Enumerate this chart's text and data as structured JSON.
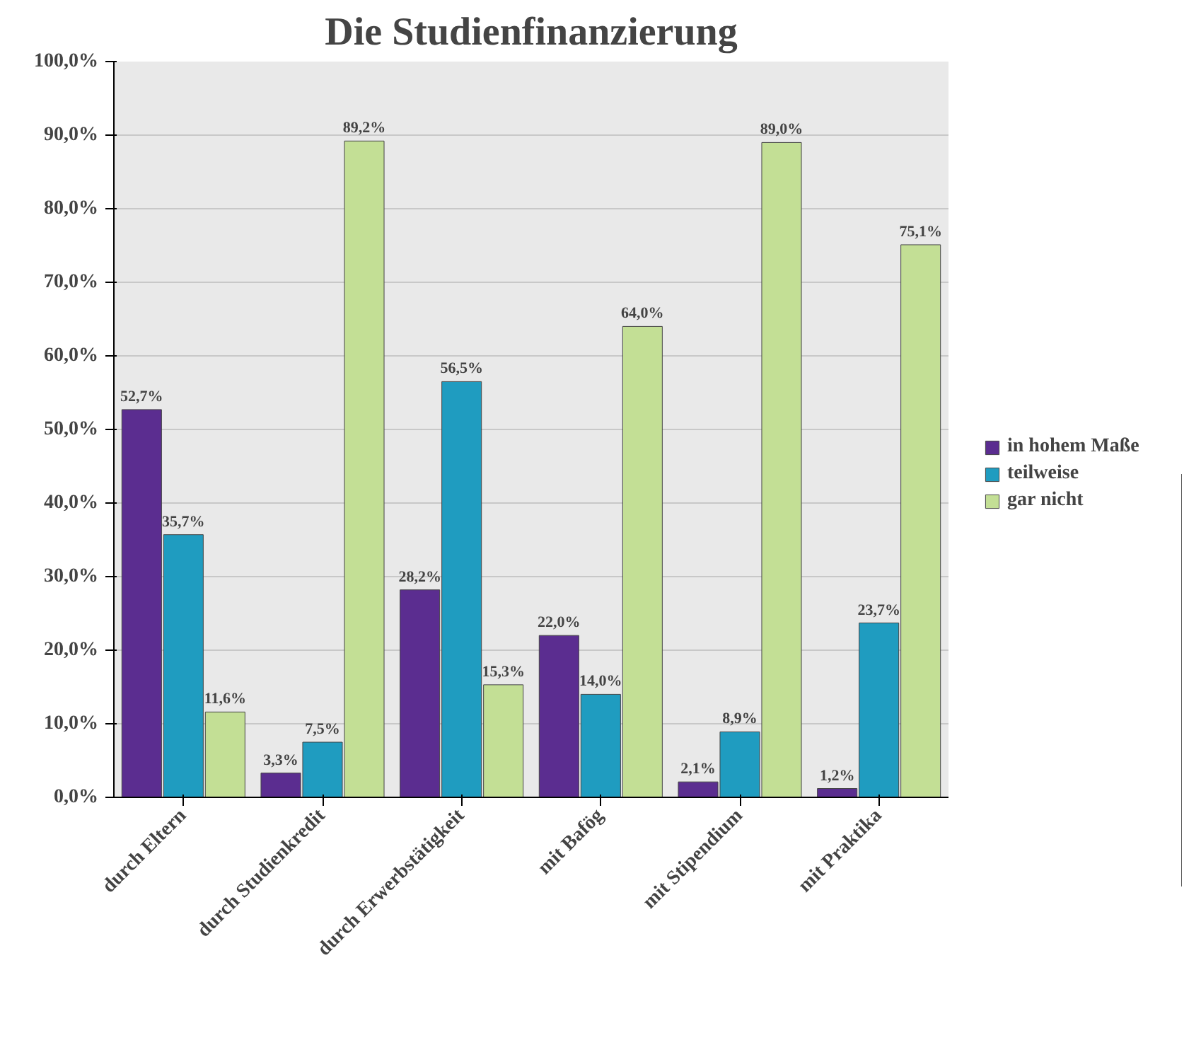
{
  "chart_data": {
    "type": "bar",
    "title": "Die Studienfinanzierung",
    "categories": [
      "durch Eltern",
      "durch Studienkredit",
      "durch Erwerbstätigkeit",
      "mit Bafög",
      "mit Stipendium",
      "mit Praktika"
    ],
    "series": [
      {
        "name": "in hohem Maße",
        "color": "#5b2d90",
        "values": [
          52.7,
          3.3,
          28.2,
          22.0,
          2.1,
          1.2
        ],
        "value_labels": [
          "52,7%",
          "3,3%",
          "28,2%",
          "22,0%",
          "2,1%",
          "1,2%"
        ]
      },
      {
        "name": "teilweise",
        "color": "#1f9cc0",
        "values": [
          35.7,
          7.5,
          56.5,
          14.0,
          8.9,
          23.7
        ],
        "value_labels": [
          "35,7%",
          "7,5%",
          "56,5%",
          "14,0%",
          "8,9%",
          "23,7%"
        ]
      },
      {
        "name": "gar nicht",
        "color": "#c3df95",
        "values": [
          11.6,
          89.2,
          15.3,
          64.0,
          89.0,
          75.1
        ],
        "value_labels": [
          "11,6%",
          "89,2%",
          "15,3%",
          "64,0%",
          "89,0%",
          "75,1%"
        ]
      }
    ],
    "ylim": [
      0,
      100
    ],
    "yticks": [
      {
        "value": 0,
        "label": "0,0%"
      },
      {
        "value": 10,
        "label": "10,0%"
      },
      {
        "value": 20,
        "label": "20,0%"
      },
      {
        "value": 30,
        "label": "30,0%"
      },
      {
        "value": 40,
        "label": "40,0%"
      },
      {
        "value": 50,
        "label": "50,0%"
      },
      {
        "value": 60,
        "label": "60,0%"
      },
      {
        "value": 70,
        "label": "70,0%"
      },
      {
        "value": 80,
        "label": "80,0%"
      },
      {
        "value": 90,
        "label": "90,0%"
      },
      {
        "value": 100,
        "label": "100,0%"
      }
    ],
    "grid": "y",
    "legend": "right"
  }
}
